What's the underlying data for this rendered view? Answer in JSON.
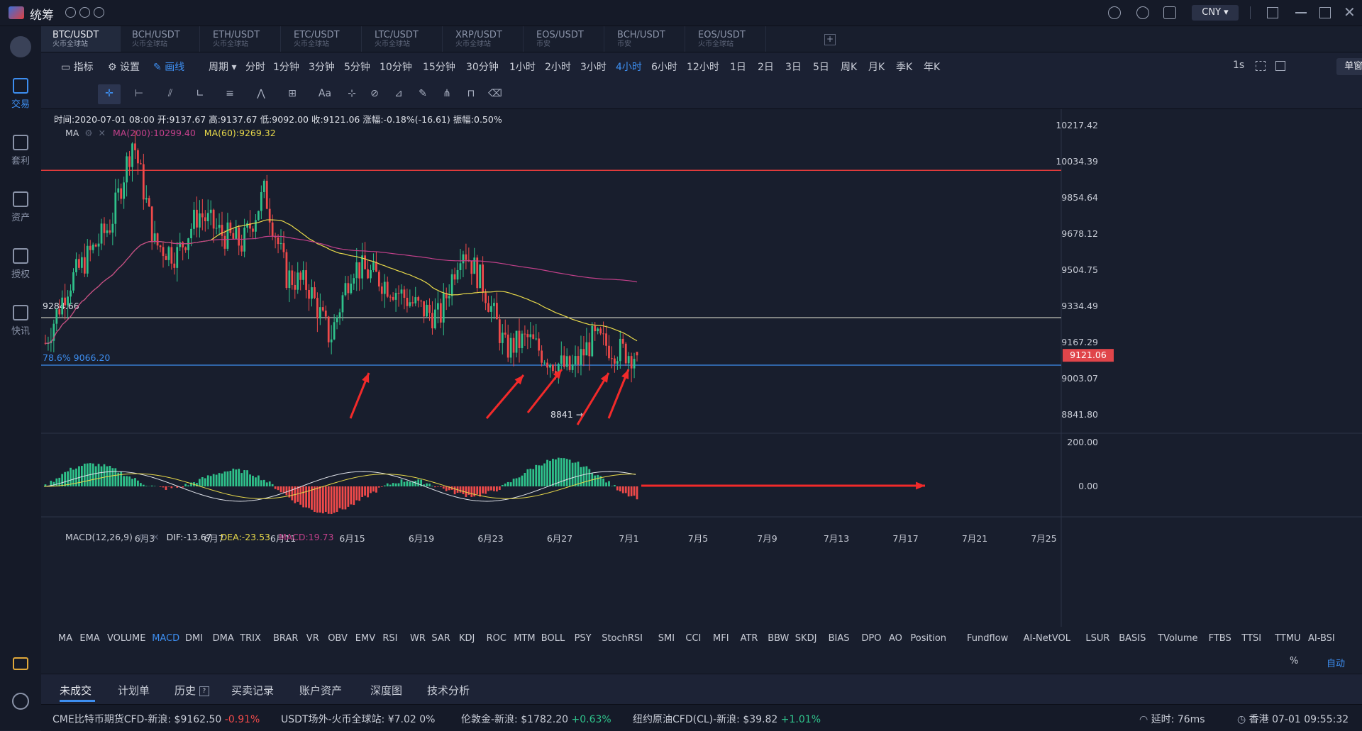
{
  "app": {
    "name": "统筹",
    "currency": "CNY"
  },
  "sidebar": {
    "items": [
      {
        "label": "交易",
        "active": true
      },
      {
        "label": "套利"
      },
      {
        "label": "资产"
      },
      {
        "label": "授权"
      },
      {
        "label": "快讯"
      }
    ]
  },
  "tabs": [
    {
      "pair": "BTC/USDT",
      "source": "火币全球站",
      "active": true
    },
    {
      "pair": "BCH/USDT",
      "source": "火币全球站"
    },
    {
      "pair": "ETH/USDT",
      "source": "火币全球站"
    },
    {
      "pair": "ETC/USDT",
      "source": "火币全球站"
    },
    {
      "pair": "LTC/USDT",
      "source": "火币全球站"
    },
    {
      "pair": "XRP/USDT",
      "source": "火币全球站"
    },
    {
      "pair": "EOS/USDT",
      "source": "币安"
    },
    {
      "pair": "BCH/USDT",
      "source": "币安"
    },
    {
      "pair": "EOS/USDT",
      "source": "火币全球站"
    }
  ],
  "toolbar": {
    "indicator": "指标",
    "settings": "设置",
    "draw": "画线",
    "period": "周期",
    "periods": [
      "分时",
      "1分钟",
      "3分钟",
      "5分钟",
      "10分钟",
      "15分钟",
      "30分钟",
      "1小时",
      "2小时",
      "3小时",
      "4小时",
      "6小时",
      "12小时",
      "1日",
      "2日",
      "3日",
      "5日",
      "周K",
      "月K",
      "季K",
      "年K"
    ],
    "active_period": "4小时",
    "refresh": "1s",
    "window_mode": "单窗口"
  },
  "chart": {
    "info": "时间:2020-07-01 08:00  开:9137.67  高:9137.67  低:9092.00  收:9121.06  涨幅:-0.18%(-16.61)  振幅:0.50%",
    "ma_name": "MA",
    "ma200": "MA(200):10299.40",
    "ma60": "MA(60):9269.32",
    "macd_name": "MACD(12,26,9)",
    "dif": "DIF:-13.67",
    "dea": "DEA:-23.53",
    "macd_val": "MACD:19.73",
    "level_label": "9284.66",
    "fib_label": "78.6% 9066.20",
    "low_label": "8841 →",
    "current_price": "9121.06",
    "price_axis": [
      "10217.42",
      "10034.39",
      "9854.64",
      "9678.12",
      "9504.75",
      "9334.49",
      "9167.29",
      "9003.07",
      "8841.80"
    ],
    "macd_axis": [
      "200.00",
      "0.00"
    ],
    "dates": [
      "6月3",
      "6月7",
      "6月11",
      "6月15",
      "6月19",
      "6月23",
      "6月27",
      "7月1",
      "7月5",
      "7月9",
      "7月13",
      "7月17",
      "7月21",
      "7月25"
    ],
    "axis_controls": {
      "percent": "%",
      "auto": "自动"
    },
    "colors": {
      "up": "#2fc28b",
      "down": "#f04a4a",
      "ma60": "#e8d94a",
      "ma200": "#c2408a",
      "resistance": "#e23b3b",
      "support": "#3d8ef0"
    }
  },
  "chart_data": {
    "type": "candlestick",
    "title": "",
    "interval": "4小时",
    "ylim": [
      8780,
      10320
    ],
    "x_ticks": [
      "6月3",
      "6月7",
      "6月11",
      "6月15",
      "6月19",
      "6月23",
      "6月27",
      "7月1"
    ],
    "close_series_approx": [
      9180,
      9450,
      9600,
      9750,
      10150,
      9650,
      9600,
      9800,
      9700,
      9650,
      9900,
      9500,
      9450,
      9200,
      9550,
      9500,
      9430,
      9350,
      9300,
      9650,
      9450,
      9150,
      9200,
      9100,
      9050,
      9200,
      9150,
      9121
    ],
    "last": {
      "time": "2020-07-01 08:00",
      "open": 9137.67,
      "high": 9137.67,
      "low": 9092.0,
      "close": 9121.06
    },
    "horizontal_lines": [
      10034.39,
      9284.66,
      9066.2
    ]
  },
  "indicators": [
    "MA",
    "EMA",
    "VOLUME",
    "MACD",
    "DMI",
    "DMA",
    "TRIX",
    "BRAR",
    "VR",
    "OBV",
    "EMV",
    "RSI",
    "WR",
    "SAR",
    "KDJ",
    "ROC",
    "MTM",
    "BOLL",
    "PSY",
    "StochRSI",
    "SMI",
    "CCI",
    "MFI",
    "ATR",
    "BBW",
    "SKDJ",
    "BIAS",
    "DPO",
    "AO",
    "Position",
    "Fundflow",
    "AI-NetVOL",
    "LSUR",
    "BASIS",
    "TVolume",
    "FTBS",
    "TTSI",
    "TTMU",
    "AI-BSI"
  ],
  "active_indicator": "MACD",
  "bottom_tabs": [
    "未成交",
    "计划单",
    "历史",
    "买卖记录",
    "账户资产",
    "深度图",
    "技术分析"
  ],
  "ticker": [
    {
      "name": "CME比特币期货CFD-新浪:",
      "price": "$9162.50",
      "change": "-0.91%",
      "dir": "down"
    },
    {
      "name": "USDT场外-火币全球站:",
      "price": "¥7.02",
      "change": "0%",
      "dir": "flat"
    },
    {
      "name": "伦敦金-新浪:",
      "price": "$1782.20",
      "change": "+0.63%",
      "dir": "up"
    },
    {
      "name": "纽约原油CFD(CL)-新浪:",
      "price": "$39.82",
      "change": "+1.01%",
      "dir": "up"
    }
  ],
  "status": {
    "latency": "延时:  76ms",
    "clock": "香港 07-01 09:55:32"
  }
}
